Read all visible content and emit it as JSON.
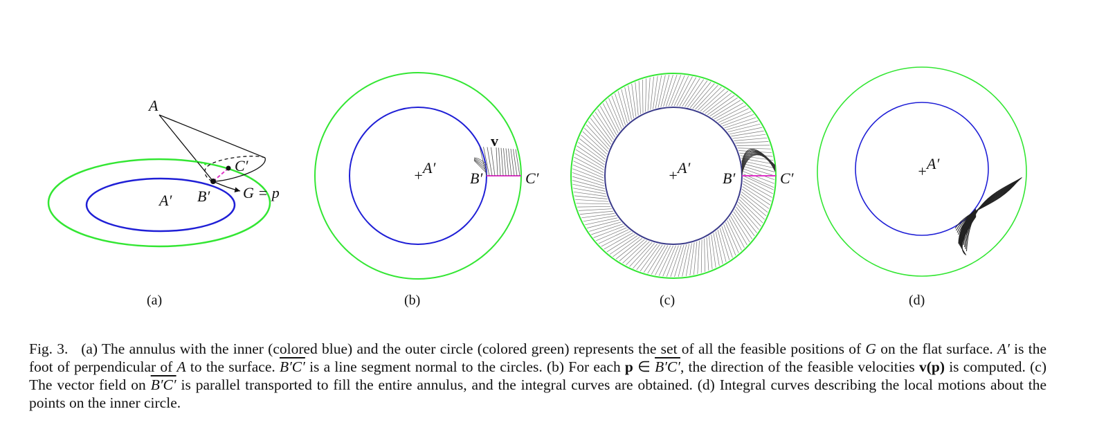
{
  "figure": {
    "panels": [
      {
        "label": "(a)",
        "point_labels": [
          "A",
          "A′",
          "B′",
          "C′",
          "G = p"
        ]
      },
      {
        "label": "(b)",
        "point_labels": [
          "A′",
          "B′",
          "C′",
          "v"
        ]
      },
      {
        "label": "(c)",
        "point_labels": [
          "A′",
          "B′",
          "C′"
        ]
      },
      {
        "label": "(d)",
        "point_labels": [
          "A′"
        ]
      }
    ],
    "colors": {
      "inner_circle": "#1f1fd6",
      "outer_circle": "#33e633",
      "segment": "#e033c8",
      "curves": "#222222"
    }
  },
  "caption": {
    "prefix": "Fig. 3.",
    "t1": "(a) The annulus with the inner (colored blue) and the outer circle (colored green) represents the set of all the feasible positions of ",
    "G": "G",
    "t2": " on the flat surface. ",
    "Ap": "A′",
    "t3": " is the foot of perpendicular of ",
    "A": "A",
    "t4": " to the surface. ",
    "BC": "B′C′",
    "t5": " is a line segment normal to the circles. (b) For each ",
    "p": "p",
    "t6": " ∈ ",
    "BC2": "B′C′",
    "t7": ", the direction of the feasible velocities ",
    "vp": "v(p)",
    "t8": " is computed. (c) The vector field on ",
    "BC3": "B′C′",
    "t9": " is parallel transported to fill the entire annulus, and the integral curves are obtained. (d) Integral curves describing the local motions about the points on the inner circle."
  }
}
